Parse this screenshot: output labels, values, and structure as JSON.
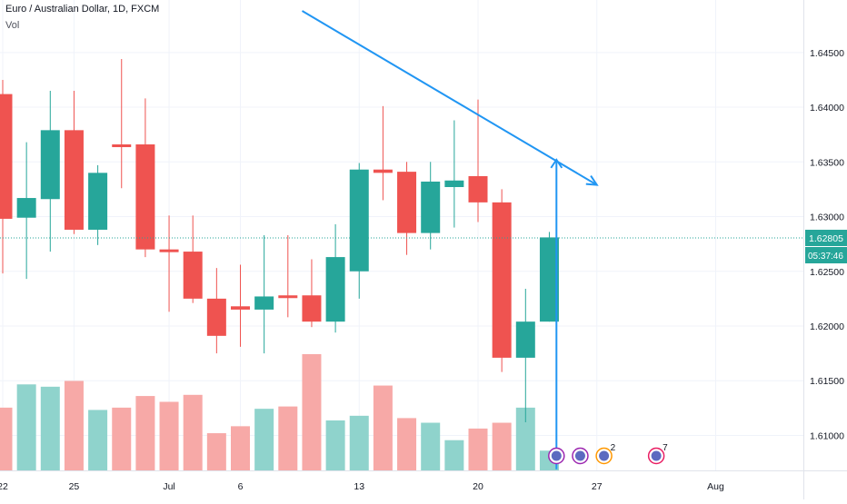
{
  "header": {
    "title": "Euro / Australian Dollar, 1D, FXCM",
    "volume_label": "Vol"
  },
  "colors": {
    "up": "#26a69a",
    "down": "#ef5350",
    "vol_up": "#8fd3cc",
    "vol_down": "#f7a9a7",
    "trendline": "#2196f3",
    "grid": "#f0f3fa",
    "price_line": "#26a69a",
    "axis_text": "#131722"
  },
  "chart_data": {
    "type": "candlestick",
    "symbol": "EURAUD",
    "timeframe": "1D",
    "y_ticks": [
      "1.64500",
      "1.64000",
      "1.63500",
      "1.63000",
      "1.62500",
      "1.62000",
      "1.61500",
      "1.61000"
    ],
    "y_tick_values": [
      1.645,
      1.64,
      1.635,
      1.63,
      1.625,
      1.62,
      1.615,
      1.61
    ],
    "ylim": [
      1.6068,
      1.6498
    ],
    "x_ticks": [
      {
        "label": "22",
        "index": 0
      },
      {
        "label": "25",
        "index": 3
      },
      {
        "label": "Jul",
        "index": 7
      },
      {
        "label": "6",
        "index": 10
      },
      {
        "label": "13",
        "index": 15
      },
      {
        "label": "20",
        "index": 20
      },
      {
        "label": "27",
        "index": 25
      },
      {
        "label": "Aug",
        "index": 30
      }
    ],
    "candles": [
      {
        "o": 1.6412,
        "h": 1.6425,
        "l": 1.6248,
        "c": 1.6298
      },
      {
        "o": 1.6299,
        "h": 1.6368,
        "l": 1.6243,
        "c": 1.6317
      },
      {
        "o": 1.6316,
        "h": 1.6415,
        "l": 1.6268,
        "c": 1.6379
      },
      {
        "o": 1.6379,
        "h": 1.6415,
        "l": 1.6284,
        "c": 1.6288
      },
      {
        "o": 1.6288,
        "h": 1.6347,
        "l": 1.6274,
        "c": 1.634
      },
      {
        "o": 1.6366,
        "h": 1.6444,
        "l": 1.6326,
        "c": 1.6364
      },
      {
        "o": 1.6366,
        "h": 1.6408,
        "l": 1.6263,
        "c": 1.627
      },
      {
        "o": 1.627,
        "h": 1.6301,
        "l": 1.6213,
        "c": 1.6268
      },
      {
        "o": 1.6268,
        "h": 1.6301,
        "l": 1.6221,
        "c": 1.6225
      },
      {
        "o": 1.6225,
        "h": 1.6253,
        "l": 1.6175,
        "c": 1.6191
      },
      {
        "o": 1.6218,
        "h": 1.6256,
        "l": 1.6181,
        "c": 1.6215
      },
      {
        "o": 1.6215,
        "h": 1.6283,
        "l": 1.6175,
        "c": 1.6227
      },
      {
        "o": 1.6228,
        "h": 1.6283,
        "l": 1.6208,
        "c": 1.6226
      },
      {
        "o": 1.6228,
        "h": 1.6261,
        "l": 1.6199,
        "c": 1.6204
      },
      {
        "o": 1.6204,
        "h": 1.6293,
        "l": 1.6194,
        "c": 1.6263
      },
      {
        "o": 1.625,
        "h": 1.6349,
        "l": 1.6225,
        "c": 1.6343
      },
      {
        "o": 1.6343,
        "h": 1.6401,
        "l": 1.6315,
        "c": 1.634
      },
      {
        "o": 1.6341,
        "h": 1.635,
        "l": 1.6265,
        "c": 1.6285
      },
      {
        "o": 1.6285,
        "h": 1.635,
        "l": 1.627,
        "c": 1.6332
      },
      {
        "o": 1.6327,
        "h": 1.6388,
        "l": 1.629,
        "c": 1.6333
      },
      {
        "o": 1.6337,
        "h": 1.6407,
        "l": 1.6295,
        "c": 1.6313
      },
      {
        "o": 1.6313,
        "h": 1.6325,
        "l": 1.6158,
        "c": 1.6171
      },
      {
        "o": 1.6171,
        "h": 1.6234,
        "l": 1.6112,
        "c": 1.6204
      },
      {
        "o": 1.6204,
        "h": 1.6286,
        "l": 1.6204,
        "c": 1.6281
      }
    ],
    "volume_relative": [
      0.54,
      0.74,
      0.72,
      0.77,
      0.52,
      0.54,
      0.64,
      0.59,
      0.65,
      0.32,
      0.38,
      0.53,
      0.55,
      1.0,
      0.43,
      0.47,
      0.73,
      0.45,
      0.41,
      0.26,
      0.36,
      0.41,
      0.54,
      0.17
    ],
    "last_price": "1.62805",
    "last_price_value": 1.62805,
    "countdown": "05:37:46",
    "trendline": {
      "from": {
        "index": 12.6,
        "price": 1.6488
      },
      "to": {
        "index": 25.0,
        "price": 1.6329
      }
    },
    "measure_arrow": {
      "index": 23.3,
      "from_price": 1.6069,
      "to_price": 1.6352
    },
    "event_markers": [
      {
        "index": 23.3,
        "count": ""
      },
      {
        "index": 24.3,
        "count": ""
      },
      {
        "index": 25.3,
        "count": "2"
      },
      {
        "index": 27.5,
        "count": "7"
      }
    ]
  }
}
